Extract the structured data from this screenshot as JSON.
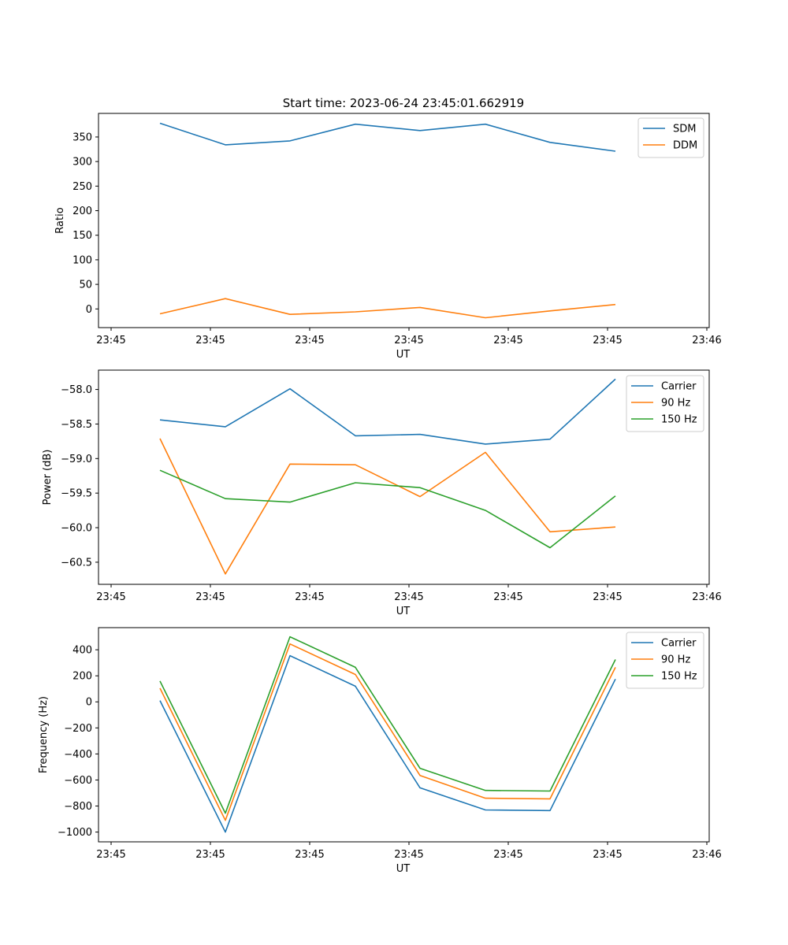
{
  "figure_title": "Start time: 2023-06-24 23:45:01.662919",
  "chart_data": [
    {
      "type": "line",
      "title": "Start time: 2023-06-24 23:45:01.662919",
      "xlabel": "UT",
      "ylabel": "Ratio",
      "x_ticks": [
        "23:45",
        "23:45",
        "23:45",
        "23:45",
        "23:45",
        "23:45",
        "23:46"
      ],
      "y_ticks": [
        "0",
        "50",
        "100",
        "150",
        "200",
        "250",
        "300",
        "350"
      ],
      "ylim": [
        -38,
        398
      ],
      "grid": false,
      "legend_position": "top-right",
      "series": [
        {
          "name": "SDM",
          "color": "#1f77b4",
          "values": [
            378,
            334,
            342,
            376,
            363,
            376,
            339,
            321
          ]
        },
        {
          "name": "DDM",
          "color": "#ff7f0e",
          "values": [
            -10,
            21,
            -11,
            -6,
            3,
            -18,
            -4,
            9
          ]
        }
      ]
    },
    {
      "type": "line",
      "title": "",
      "xlabel": "UT",
      "ylabel": "Power (dB)",
      "x_ticks": [
        "23:45",
        "23:45",
        "23:45",
        "23:45",
        "23:45",
        "23:45",
        "23:46"
      ],
      "y_ticks": [
        "−58.0",
        "−58.5",
        "−59.0",
        "−59.5",
        "−60.0",
        "−60.5"
      ],
      "ylim": [
        -60.82,
        -57.72
      ],
      "grid": false,
      "legend_position": "top-right",
      "series": [
        {
          "name": "Carrier",
          "color": "#1f77b4",
          "values": [
            -58.44,
            -58.54,
            -57.99,
            -58.67,
            -58.65,
            -58.79,
            -58.72,
            -57.85
          ]
        },
        {
          "name": "90 Hz",
          "color": "#ff7f0e",
          "values": [
            -58.71,
            -60.67,
            -59.08,
            -59.09,
            -59.55,
            -58.91,
            -60.06,
            -59.99
          ]
        },
        {
          "name": "150 Hz",
          "color": "#2ca02c",
          "values": [
            -59.17,
            -59.58,
            -59.63,
            -59.35,
            -59.42,
            -59.75,
            -60.29,
            -59.54
          ]
        }
      ]
    },
    {
      "type": "line",
      "title": "",
      "xlabel": "UT",
      "ylabel": "Frequency (Hz)",
      "x_ticks": [
        "23:45",
        "23:45",
        "23:45",
        "23:45",
        "23:45",
        "23:45",
        "23:46"
      ],
      "y_ticks": [
        "400",
        "200",
        "0",
        "−200",
        "−400",
        "−600",
        "−800",
        "−1000"
      ],
      "ylim": [
        -1075,
        570
      ],
      "grid": false,
      "legend_position": "top-right",
      "series": [
        {
          "name": "Carrier",
          "color": "#1f77b4",
          "values": [
            10,
            -1000,
            355,
            120,
            -660,
            -830,
            -835,
            175
          ]
        },
        {
          "name": "90 Hz",
          "color": "#ff7f0e",
          "values": [
            105,
            -910,
            445,
            210,
            -565,
            -740,
            -745,
            265
          ]
        },
        {
          "name": "150 Hz",
          "color": "#2ca02c",
          "values": [
            160,
            -855,
            500,
            265,
            -510,
            -680,
            -685,
            325
          ]
        }
      ]
    }
  ]
}
